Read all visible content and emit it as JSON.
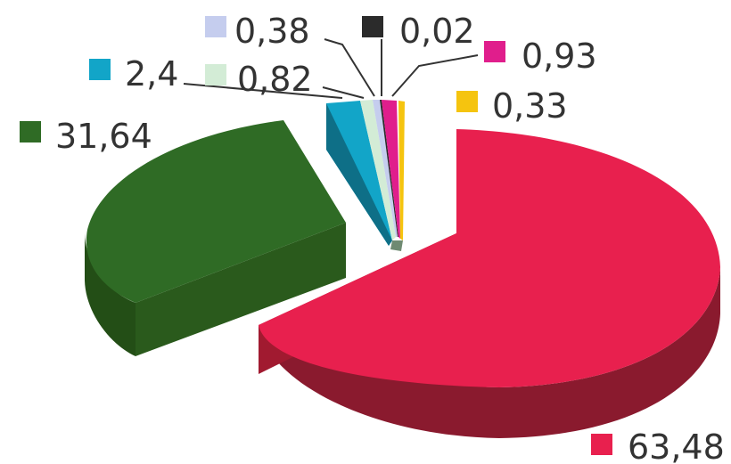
{
  "chart_data": {
    "type": "pie",
    "style": "3d-exploded",
    "slices": [
      {
        "label": "63,48",
        "value": 63.48,
        "color": "#e8204e"
      },
      {
        "label": "0,33",
        "value": 0.33,
        "color": "#f5c40f"
      },
      {
        "label": "0,93",
        "value": 0.93,
        "color": "#e01e8c"
      },
      {
        "label": "0,02",
        "value": 0.02,
        "color": "#2b2b2b"
      },
      {
        "label": "0,38",
        "value": 0.38,
        "color": "#c5cdee"
      },
      {
        "label": "0,82",
        "value": 0.82,
        "color": "#d3ecd6"
      },
      {
        "label": "2,4",
        "value": 2.4,
        "color": "#12a5c8"
      },
      {
        "label": "31,64",
        "value": 31.64,
        "color": "#2f6b25"
      }
    ],
    "legend": "labels-beside-slices"
  }
}
